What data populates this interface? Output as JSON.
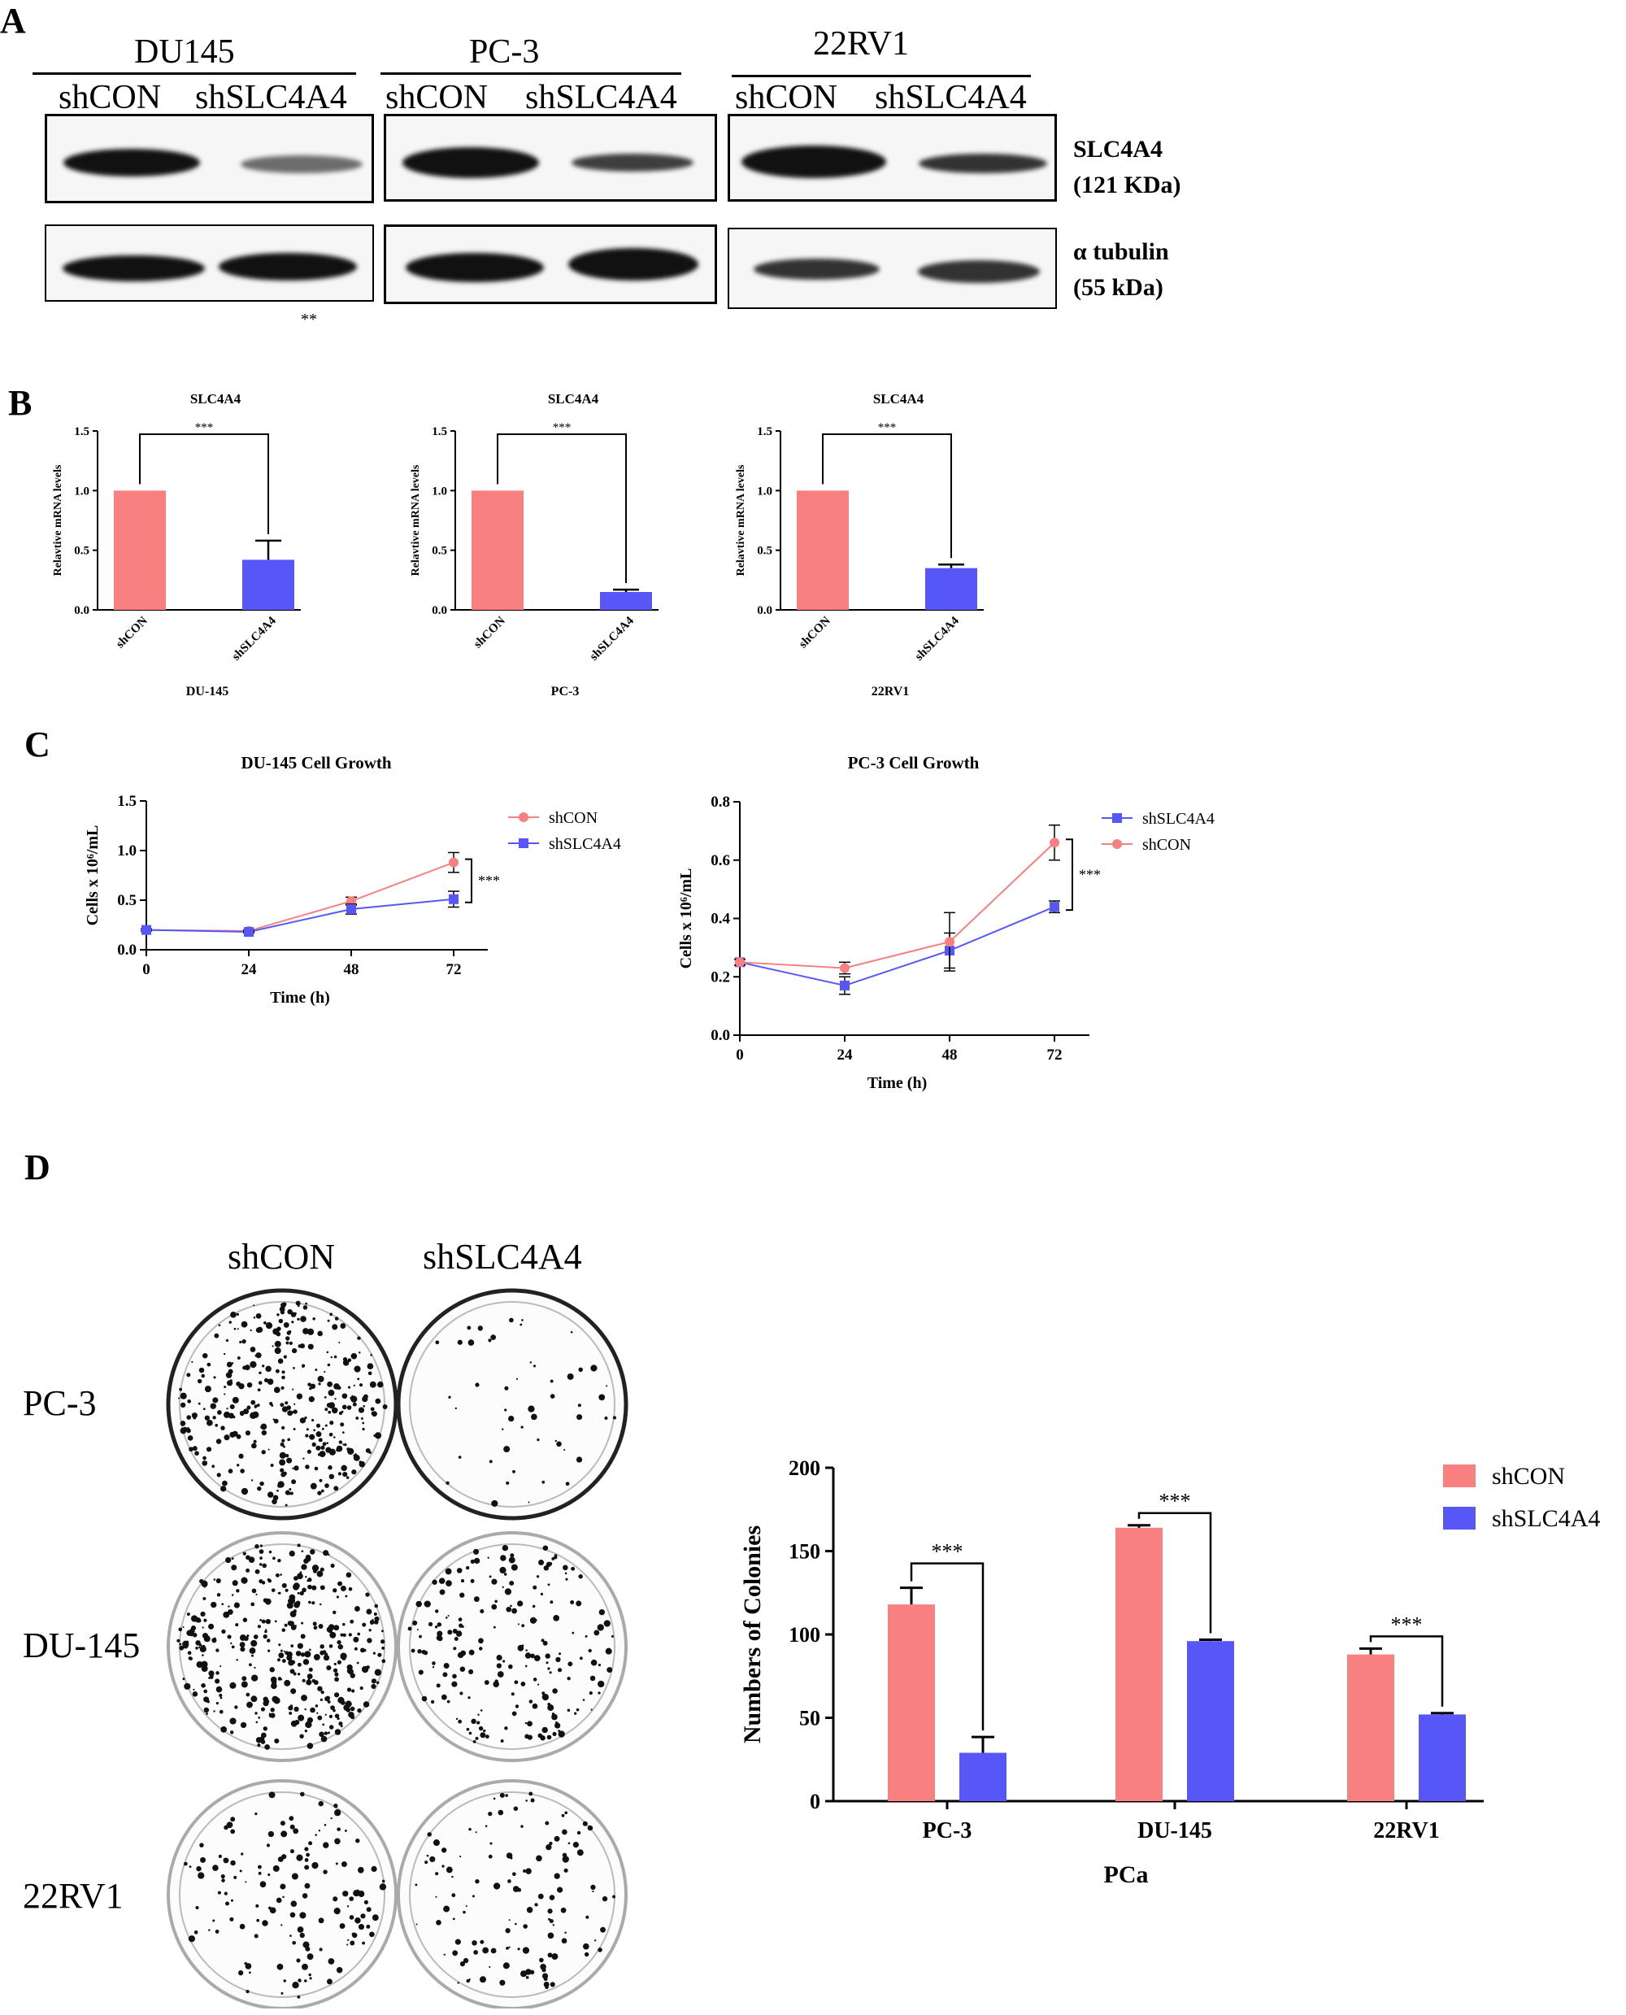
{
  "panels": {
    "a": "A",
    "b": "B",
    "c": "C",
    "d": "D"
  },
  "western": {
    "groups": [
      {
        "cell_line": "DU145",
        "lane1": "shCON",
        "lane2": "shSLC4A4"
      },
      {
        "cell_line": "PC-3",
        "lane1": "shCON",
        "lane2": "shSLC4A4"
      },
      {
        "cell_line": "22RV1",
        "lane1": "shCON",
        "lane2": "shSLC4A4"
      }
    ],
    "proteins": [
      {
        "name": "SLC4A4",
        "weight": "(121 KDa)"
      },
      {
        "name": "α tubulin",
        "weight": "(55 kDa)"
      }
    ],
    "marker": "**"
  },
  "colors": {
    "shCON": "#f88080",
    "shSLC4A4": "#5757f7"
  },
  "chart_data": [
    {
      "type": "bar",
      "panel": "B",
      "title": "SLC4A4",
      "categories": [
        "shCON",
        "shSLC4A4"
      ],
      "values": [
        1.0,
        0.42
      ],
      "errors": [
        0,
        0.16
      ],
      "xlabel": "DU-145",
      "ylabel": "Relavtive mRNA levels",
      "ylim": [
        0,
        1.5
      ],
      "yticks": [
        "0.0",
        "0.5",
        "1.0",
        "1.5"
      ],
      "significance": "***"
    },
    {
      "type": "bar",
      "panel": "B",
      "title": "SLC4A4",
      "categories": [
        "shCON",
        "shSLC4A4"
      ],
      "values": [
        1.0,
        0.15
      ],
      "errors": [
        0,
        0.02
      ],
      "xlabel": "PC-3",
      "ylabel": "Relavtive mRNA levels",
      "ylim": [
        0,
        1.5
      ],
      "yticks": [
        "0.0",
        "0.5",
        "1.0",
        "1.5"
      ],
      "significance": "***"
    },
    {
      "type": "bar",
      "panel": "B",
      "title": "SLC4A4",
      "categories": [
        "shCON",
        "shSLC4A4"
      ],
      "values": [
        1.0,
        0.35
      ],
      "errors": [
        0,
        0.03
      ],
      "xlabel": "22RV1",
      "ylabel": "Relavtive mRNA levels",
      "ylim": [
        0,
        1.5
      ],
      "yticks": [
        "0.0",
        "0.5",
        "1.0",
        "1.5"
      ],
      "significance": "***"
    },
    {
      "type": "line",
      "panel": "C",
      "title": "DU-145 Cell Growth",
      "x": [
        0,
        24,
        48,
        72
      ],
      "xticks": [
        "0",
        "24",
        "48",
        "72"
      ],
      "xlabel": "Time (h)",
      "ylabel": "Cells x 10⁶/mL",
      "ylim": [
        0,
        1.5
      ],
      "yticks": [
        "0.0",
        "0.5",
        "1.0",
        "1.5"
      ],
      "legend_position": "top-right",
      "significance": "***",
      "series": [
        {
          "name": "shCON",
          "values": [
            0.2,
            0.19,
            0.49,
            0.88
          ],
          "errors": [
            0.01,
            0.01,
            0.04,
            0.1
          ]
        },
        {
          "name": "shSLC4A4",
          "values": [
            0.2,
            0.18,
            0.41,
            0.51
          ],
          "errors": [
            0.01,
            0.01,
            0.05,
            0.08
          ]
        }
      ]
    },
    {
      "type": "line",
      "panel": "C",
      "title": "PC-3 Cell Growth",
      "x": [
        0,
        24,
        48,
        72
      ],
      "xticks": [
        "0",
        "24",
        "48",
        "72"
      ],
      "xlabel": "Time (h)",
      "ylabel": "Cells x 10⁶/mL",
      "ylim": [
        0,
        0.8
      ],
      "yticks": [
        "0.0",
        "0.2",
        "0.4",
        "0.6",
        "0.8"
      ],
      "legend_position": "top-right",
      "significance": "***",
      "series": [
        {
          "name": "shSLC4A4",
          "values": [
            0.25,
            0.17,
            0.29,
            0.44
          ],
          "errors": [
            0.01,
            0.03,
            0.06,
            0.02
          ]
        },
        {
          "name": "shCON",
          "values": [
            0.25,
            0.23,
            0.32,
            0.66
          ],
          "errors": [
            0.01,
            0.02,
            0.1,
            0.06
          ]
        }
      ]
    },
    {
      "type": "bar",
      "panel": "D",
      "categories": [
        "PC-3",
        "DU-145",
        "22RV1"
      ],
      "xlabel": "PCa",
      "ylabel": "Numbers of Colonies",
      "ylim": [
        0,
        200
      ],
      "yticks": [
        "0",
        "50",
        "100",
        "150",
        "200"
      ],
      "legend_position": "top-right",
      "significance": "***",
      "series": [
        {
          "name": "shCON",
          "values": [
            118,
            164,
            88
          ],
          "errors": [
            10,
            1.5,
            3.5
          ]
        },
        {
          "name": "shSLC4A4",
          "values": [
            29,
            96,
            52
          ],
          "errors": [
            9.5,
            0.8,
            0.8
          ]
        }
      ]
    }
  ],
  "colony": {
    "columns": [
      "shCON",
      "shSLC4A4"
    ],
    "rows": [
      {
        "label": "PC-3",
        "density": [
          0.85,
          0.12
        ]
      },
      {
        "label": "DU-145",
        "density": [
          0.95,
          0.5
        ]
      },
      {
        "label": "22RV1",
        "density": [
          0.35,
          0.3
        ]
      }
    ]
  }
}
